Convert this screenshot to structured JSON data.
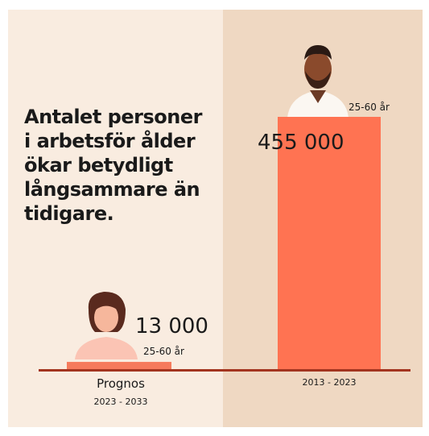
{
  "chart_data": {
    "type": "bar",
    "title": [
      "Antalet personer",
      "i arbetsför ålder",
      "ökar betydligt",
      "långsammare än",
      "tidigare."
    ],
    "categories": [
      "2023 - 2033",
      "2013 - 2023"
    ],
    "category_notes": [
      "Prognos",
      null
    ],
    "values": [
      13000,
      455000
    ],
    "value_labels": [
      "13 000",
      "455 000"
    ],
    "group_labels": [
      "25-60 år",
      "25-60 år"
    ],
    "colors": [
      "#f57a5c",
      "#ff7352"
    ],
    "baseline_color": "#a3341f"
  }
}
